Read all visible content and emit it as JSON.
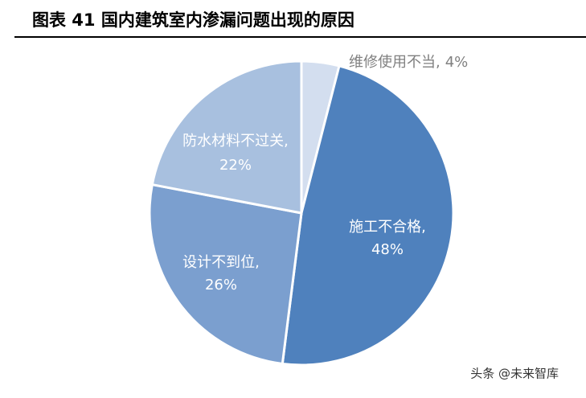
{
  "title": "图表 41  国内建筑室内渗漏问题出现的原因",
  "watermark": "头条 @未来智库",
  "chart_data": {
    "type": "pie",
    "categories": [
      "维修使用不当,",
      "施工不合格,",
      "设计不到位,",
      "防水材料不过关,"
    ],
    "values": [
      4,
      48,
      26,
      22
    ],
    "value_labels": [
      "4%",
      "48%",
      "26%",
      "22%"
    ],
    "colors": [
      "#d3deef",
      "#4f81bd",
      "#7b9fcf",
      "#a8c0df"
    ]
  }
}
